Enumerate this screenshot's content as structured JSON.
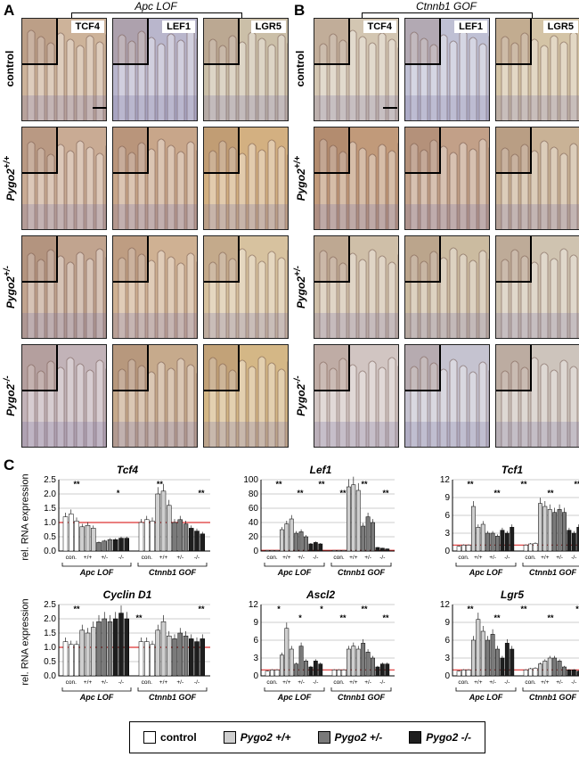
{
  "panels": {
    "a": "A",
    "b": "B",
    "c": "C"
  },
  "group_a": "Apc LOF",
  "group_b": "Ctnnb1 GOF",
  "markers": [
    "TCF4",
    "LEF1",
    "LGR5"
  ],
  "rows": [
    "control",
    "Pygo2 +/+",
    "Pygo2 +/-",
    "Pygo2 -/-"
  ],
  "rows_html": [
    "control",
    "Pygo2<sup>+/+</sup>",
    "Pygo2<sup>+/-</sup>",
    "Pygo2<sup>-/-</sup>"
  ],
  "ylabel": "rel. RNA expression",
  "legend": {
    "control": "control",
    "wt": "Pygo2 +/+",
    "het": "Pygo2 +/-",
    "ko": "Pygo2 -/-",
    "colors": {
      "control": "#ffffff",
      "wt": "#cfcfcf",
      "het": "#7a7a7a",
      "ko": "#1e1e1e"
    }
  },
  "xgroups": [
    "Apc LOF",
    "Ctnnb1 GOF"
  ],
  "xticks": [
    "con.",
    "+/+",
    "+/-",
    "-/-"
  ],
  "chart_data": [
    {
      "type": "bar",
      "title": "Tcf4",
      "ylabel": "rel. RNA expression",
      "yticks": [
        0,
        0.5,
        1.0,
        1.5,
        2.0,
        2.5
      ],
      "ylim": [
        0,
        2.5
      ],
      "series": [
        {
          "name": "control",
          "values": [
            1.2,
            1.3,
            1.05,
            1.0,
            1.1,
            1.05
          ]
        },
        {
          "name": "Pygo2 +/+",
          "values": [
            0.85,
            0.9,
            0.8,
            2.0,
            2.1,
            1.6
          ]
        },
        {
          "name": "Pygo2 +/-",
          "values": [
            0.3,
            0.35,
            0.4,
            1.0,
            1.1,
            0.95
          ]
        },
        {
          "name": "Pygo2 -/-",
          "values": [
            0.4,
            0.45,
            0.45,
            0.8,
            0.7,
            0.6
          ]
        }
      ],
      "annotations": [
        "**",
        "*",
        "**",
        "**"
      ]
    },
    {
      "type": "bar",
      "title": "Lef1",
      "ylabel": "",
      "yticks": [
        0,
        20,
        40,
        60,
        80,
        100
      ],
      "ylim": [
        0,
        100
      ],
      "series": [
        {
          "name": "control",
          "values": [
            1,
            1,
            1,
            1,
            1,
            1
          ]
        },
        {
          "name": "Pygo2 +/+",
          "values": [
            30,
            38,
            45,
            90,
            93,
            85
          ]
        },
        {
          "name": "Pygo2 +/-",
          "values": [
            25,
            27,
            20,
            35,
            48,
            40
          ]
        },
        {
          "name": "Pygo2 -/-",
          "values": [
            10,
            12,
            10,
            5,
            4,
            3
          ]
        }
      ],
      "annotations": [
        "**",
        "**",
        "**",
        "**",
        "**",
        "**"
      ]
    },
    {
      "type": "bar",
      "title": "Tcf1",
      "ylabel": "",
      "yticks": [
        0,
        3,
        6,
        9,
        12
      ],
      "ylim": [
        0,
        12
      ],
      "series": [
        {
          "name": "control",
          "values": [
            0.8,
            1.0,
            1.0,
            1.0,
            1.2,
            1.3
          ]
        },
        {
          "name": "Pygo2 +/+",
          "values": [
            7.5,
            4.0,
            4.5,
            8.0,
            7.5,
            7.0
          ]
        },
        {
          "name": "Pygo2 +/-",
          "values": [
            3.0,
            3.0,
            2.5,
            6.5,
            7.0,
            6.5
          ]
        },
        {
          "name": "Pygo2 -/-",
          "values": [
            3.5,
            3.0,
            4.0,
            3.5,
            3.0,
            4.0
          ]
        }
      ],
      "annotations": [
        "**",
        "**",
        "**",
        "**",
        "**"
      ]
    },
    {
      "type": "bar",
      "title": "Cyclin D1",
      "ylabel": "rel. RNA expression",
      "yticks": [
        0,
        0.5,
        1.0,
        1.5,
        2.0,
        2.5
      ],
      "ylim": [
        0,
        2.5
      ],
      "series": [
        {
          "name": "control",
          "values": [
            1.2,
            1.1,
            1.1,
            1.2,
            1.2,
            1.1
          ]
        },
        {
          "name": "Pygo2 +/+",
          "values": [
            1.6,
            1.5,
            1.7,
            1.6,
            1.9,
            1.4
          ]
        },
        {
          "name": "Pygo2 +/-",
          "values": [
            1.9,
            2.0,
            1.9,
            1.3,
            1.5,
            1.4
          ]
        },
        {
          "name": "Pygo2 -/-",
          "values": [
            2.0,
            2.2,
            2.0,
            1.3,
            1.2,
            1.3
          ]
        }
      ],
      "annotations": [
        "**",
        "**",
        "**"
      ]
    },
    {
      "type": "bar",
      "title": "Ascl2",
      "ylabel": "",
      "yticks": [
        0,
        3,
        6,
        9,
        12
      ],
      "ylim": [
        0,
        12
      ],
      "series": [
        {
          "name": "control",
          "values": [
            0.8,
            1.0,
            1.0,
            1.0,
            1.0,
            1.0
          ]
        },
        {
          "name": "Pygo2 +/+",
          "values": [
            3.5,
            8.0,
            4.5,
            4.5,
            5.0,
            4.5
          ]
        },
        {
          "name": "Pygo2 +/-",
          "values": [
            2.0,
            5.0,
            2.5,
            5.5,
            4.0,
            3.0
          ]
        },
        {
          "name": "Pygo2 -/-",
          "values": [
            1.5,
            2.5,
            2.0,
            1.5,
            2.0,
            2.0
          ]
        }
      ],
      "annotations": [
        "*",
        "*",
        "*",
        "**",
        "**",
        "**"
      ]
    },
    {
      "type": "bar",
      "title": "Lgr5",
      "ylabel": "",
      "yticks": [
        0,
        3,
        6,
        9,
        12
      ],
      "ylim": [
        0,
        12
      ],
      "series": [
        {
          "name": "control",
          "values": [
            0.8,
            1.0,
            1.0,
            1.0,
            1.2,
            1.3
          ]
        },
        {
          "name": "Pygo2 +/+",
          "values": [
            6.0,
            9.5,
            7.5,
            2.0,
            2.5,
            3.0
          ]
        },
        {
          "name": "Pygo2 +/-",
          "values": [
            6.0,
            7.0,
            4.5,
            3.0,
            2.5,
            1.5
          ]
        },
        {
          "name": "Pygo2 -/-",
          "values": [
            3.0,
            5.5,
            4.5,
            1.0,
            1.0,
            0.8
          ]
        }
      ],
      "annotations": [
        "**",
        "**",
        "**",
        "**",
        "*"
      ]
    }
  ]
}
